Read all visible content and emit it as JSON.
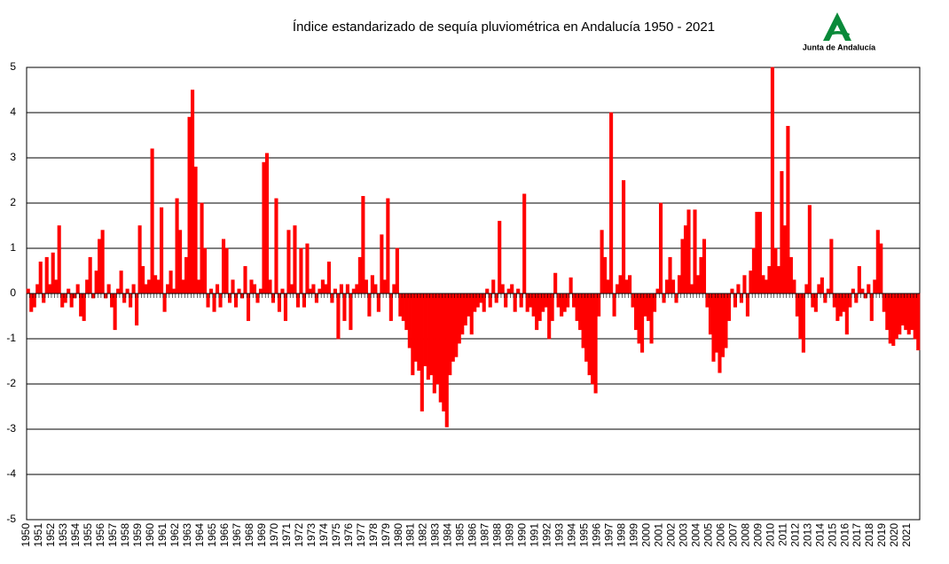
{
  "logo": {
    "text": "Junta de Andalucía"
  },
  "chart_data": {
    "type": "bar",
    "title": "Índice estandarizado de sequía pluviométrica en Andalucía 1950 - 2021",
    "color": "#ff0000",
    "ylim": [
      -5,
      5
    ],
    "yticks": [
      -5,
      -4,
      -3,
      -2,
      -1,
      0,
      1,
      2,
      3,
      4,
      5
    ],
    "grid": true,
    "categories": [
      "1950",
      null,
      null,
      null,
      "1951",
      null,
      null,
      null,
      "1952",
      null,
      null,
      null,
      "1953",
      null,
      null,
      null,
      "1954",
      null,
      null,
      null,
      "1955",
      null,
      null,
      null,
      "1956",
      null,
      null,
      null,
      "1957",
      null,
      null,
      null,
      "1958",
      null,
      null,
      null,
      "1959",
      null,
      null,
      null,
      "1960",
      null,
      null,
      null,
      "1961",
      null,
      null,
      null,
      "1962",
      null,
      null,
      null,
      "1963",
      null,
      null,
      null,
      "1964",
      null,
      null,
      null,
      "1965",
      null,
      null,
      null,
      "1966",
      null,
      null,
      null,
      "1967",
      null,
      null,
      null,
      "1968",
      null,
      null,
      null,
      "1969",
      null,
      null,
      null,
      "1970",
      null,
      null,
      null,
      "1971",
      null,
      null,
      null,
      "1972",
      null,
      null,
      null,
      "1973",
      null,
      null,
      null,
      "1974",
      null,
      null,
      null,
      "1975",
      null,
      null,
      null,
      "1976",
      null,
      null,
      null,
      "1977",
      null,
      null,
      null,
      "1978",
      null,
      null,
      null,
      "1979",
      null,
      null,
      null,
      "1980",
      null,
      null,
      null,
      "1981",
      null,
      null,
      null,
      "1982",
      null,
      null,
      null,
      "1983",
      null,
      null,
      null,
      "1984",
      null,
      null,
      null,
      "1985",
      null,
      null,
      null,
      "1986",
      null,
      null,
      null,
      "1987",
      null,
      null,
      null,
      "1988",
      null,
      null,
      null,
      "1989",
      null,
      null,
      null,
      "1990",
      null,
      null,
      null,
      "1991",
      null,
      null,
      null,
      "1992",
      null,
      null,
      null,
      "1993",
      null,
      null,
      null,
      "1994",
      null,
      null,
      null,
      "1995",
      null,
      null,
      null,
      "1996",
      null,
      null,
      null,
      "1997",
      null,
      null,
      null,
      "1998",
      null,
      null,
      null,
      "1999",
      null,
      null,
      null,
      "2000",
      null,
      null,
      null,
      "2001",
      null,
      null,
      null,
      "2002",
      null,
      null,
      null,
      "2003",
      null,
      null,
      null,
      "2004",
      null,
      null,
      null,
      "2005",
      null,
      null,
      null,
      "2006",
      null,
      null,
      null,
      "2007",
      null,
      null,
      null,
      "2008",
      null,
      null,
      null,
      "2009",
      null,
      null,
      null,
      "2010",
      null,
      null,
      null,
      "2011",
      null,
      null,
      null,
      "2012",
      null,
      null,
      null,
      "2013",
      null,
      null,
      null,
      "2014",
      null,
      null,
      null,
      "2015",
      null,
      null,
      null,
      "2016",
      null,
      null,
      null,
      "2017",
      null,
      null,
      null,
      "2018",
      null,
      null,
      null,
      "2019",
      null,
      null,
      null,
      "2020",
      null,
      null,
      null,
      "2021",
      null,
      null,
      null
    ],
    "values": [
      0.1,
      -0.4,
      -0.3,
      0.2,
      0.7,
      -0.2,
      0.8,
      0.2,
      0.9,
      0.3,
      1.5,
      -0.3,
      -0.2,
      0.1,
      -0.3,
      -0.1,
      0.2,
      -0.5,
      -0.6,
      0.3,
      0.8,
      -0.1,
      0.5,
      1.2,
      1.4,
      -0.1,
      0.2,
      -0.3,
      -0.8,
      0.1,
      0.5,
      -0.2,
      0.1,
      -0.3,
      0.2,
      -0.7,
      1.5,
      0.6,
      0.2,
      0.3,
      3.2,
      0.4,
      0.3,
      1.9,
      -0.4,
      0.2,
      0.5,
      0.1,
      2.1,
      1.4,
      0.3,
      0.8,
      3.9,
      4.5,
      2.8,
      0.3,
      2.0,
      1.0,
      -0.3,
      0.1,
      -0.4,
      0.2,
      -0.3,
      1.2,
      1.0,
      -0.2,
      0.3,
      -0.3,
      0.1,
      -0.1,
      0.6,
      -0.6,
      0.3,
      0.2,
      -0.2,
      0.1,
      2.9,
      3.1,
      0.3,
      -0.2,
      2.1,
      -0.4,
      0.1,
      -0.6,
      1.4,
      0.2,
      1.5,
      -0.3,
      1.0,
      -0.3,
      1.1,
      0.1,
      0.2,
      -0.2,
      0.1,
      0.3,
      0.2,
      0.7,
      -0.2,
      0.1,
      -1.0,
      0.2,
      -0.6,
      0.2,
      -0.8,
      0.1,
      0.2,
      0.8,
      2.15,
      0.3,
      -0.5,
      0.4,
      0.2,
      -0.4,
      1.3,
      0.3,
      2.1,
      -0.6,
      0.2,
      1.0,
      -0.5,
      -0.6,
      -0.8,
      -1.2,
      -1.8,
      -1.5,
      -1.7,
      -2.6,
      -1.6,
      -1.9,
      -1.8,
      -2.2,
      -2.0,
      -2.4,
      -2.6,
      -2.95,
      -1.8,
      -1.5,
      -1.4,
      -1.1,
      -0.9,
      -0.7,
      -0.5,
      -0.9,
      -0.4,
      -0.3,
      -0.2,
      -0.4,
      0.1,
      -0.3,
      0.3,
      -0.2,
      1.6,
      0.2,
      -0.3,
      0.1,
      0.2,
      -0.4,
      0.1,
      -0.3,
      2.2,
      -0.4,
      -0.3,
      -0.5,
      -0.8,
      -0.6,
      -0.4,
      -0.3,
      -1.0,
      -0.6,
      0.45,
      -0.3,
      -0.5,
      -0.4,
      -0.3,
      0.35,
      -0.3,
      -0.6,
      -0.8,
      -1.2,
      -1.5,
      -1.8,
      -2.0,
      -2.2,
      -0.5,
      1.4,
      0.8,
      0.3,
      4.0,
      -0.5,
      0.2,
      0.4,
      2.5,
      0.3,
      0.4,
      -0.3,
      -0.8,
      -1.1,
      -1.3,
      -0.5,
      -0.6,
      -1.1,
      -0.4,
      0.1,
      2.0,
      -0.2,
      0.3,
      0.8,
      0.3,
      -0.2,
      0.4,
      1.2,
      1.5,
      1.85,
      0.2,
      1.85,
      0.4,
      0.8,
      1.2,
      -0.3,
      -0.9,
      -1.5,
      -1.3,
      -1.75,
      -1.4,
      -1.2,
      -0.6,
      0.1,
      -0.3,
      0.2,
      -0.2,
      0.4,
      -0.5,
      0.5,
      1.0,
      1.8,
      1.8,
      0.4,
      0.3,
      0.6,
      5.0,
      1.0,
      0.6,
      2.7,
      1.5,
      3.7,
      0.8,
      0.3,
      -0.5,
      -1.0,
      -1.3,
      0.2,
      1.95,
      -0.3,
      -0.4,
      0.2,
      0.35,
      -0.2,
      0.1,
      1.2,
      -0.3,
      -0.6,
      -0.5,
      -0.4,
      -0.9,
      -0.3,
      0.1,
      -0.2,
      0.6,
      0.1,
      -0.1,
      0.2,
      -0.6,
      0.3,
      1.4,
      1.1,
      -0.4,
      -0.8,
      -1.1,
      -1.15,
      -1.0,
      -0.9,
      -0.7,
      -0.8,
      -0.9,
      -0.8,
      -1.0,
      -1.25
    ]
  }
}
